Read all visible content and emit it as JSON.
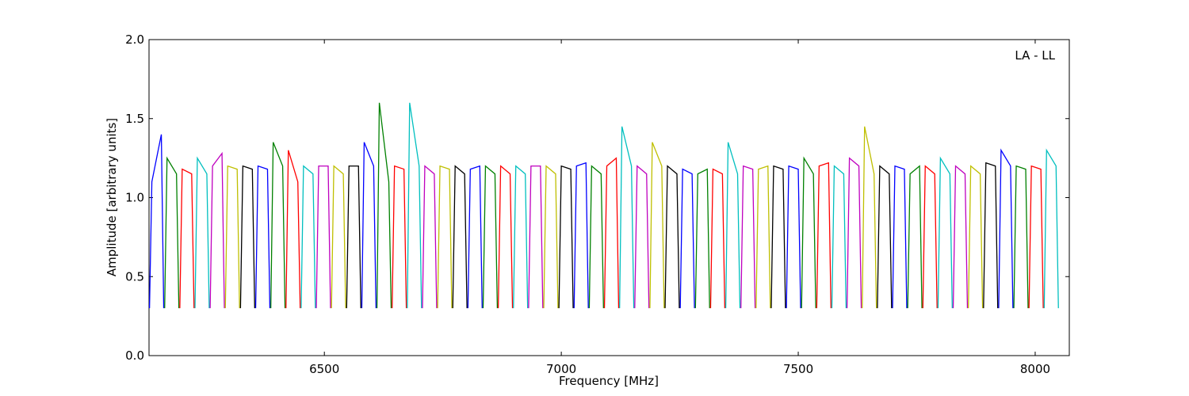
{
  "chart_data": {
    "type": "line",
    "annotation": "LA - LL",
    "xlabel": "Frequency [MHz]",
    "ylabel": "Amplitude [arbitrary units]",
    "xlim": [
      6130,
      8072
    ],
    "ylim": [
      0,
      2
    ],
    "xticks": [
      6500,
      7000,
      7500,
      8000
    ],
    "yticks": [
      {
        "value": 0,
        "label": "0.0"
      },
      0.5,
      {
        "value": 1,
        "label": "1.0"
      },
      1.5,
      {
        "value": 2,
        "label": "2.0"
      }
    ],
    "series": [
      {
        "color": "#0000ff",
        "x": [
          6131,
          6136,
          6156,
          6161,
          null,
          6355,
          6360,
          6380,
          6385,
          null,
          6579,
          6584,
          6604,
          6609,
          null,
          6803,
          6808,
          6828,
          6833,
          null,
          7027,
          7032,
          7052,
          7057,
          null,
          7251,
          7256,
          7276,
          7281,
          null,
          7475,
          7480,
          7500,
          7505,
          null,
          7699,
          7704,
          7724,
          7729,
          null,
          7923,
          7928,
          7948,
          7953
        ],
        "values": [
          0.3,
          1.1,
          1.4,
          0.3,
          null,
          0.3,
          1.2,
          1.18,
          0.3,
          null,
          0.3,
          1.35,
          1.2,
          0.3,
          null,
          0.3,
          1.18,
          1.2,
          0.3,
          null,
          0.3,
          1.2,
          1.22,
          0.3,
          null,
          0.3,
          1.18,
          1.15,
          0.3,
          null,
          0.3,
          1.2,
          1.18,
          0.3,
          null,
          0.3,
          1.2,
          1.18,
          0.3,
          null,
          0.3,
          1.3,
          1.2,
          0.3
        ]
      },
      {
        "color": "#008000",
        "x": [
          6163,
          6168,
          6188,
          6193,
          null,
          6387,
          6392,
          6412,
          6417,
          null,
          6611,
          6616,
          6636,
          6641,
          null,
          6835,
          6840,
          6860,
          6865,
          null,
          7059,
          7064,
          7084,
          7089,
          null,
          7283,
          7288,
          7308,
          7313,
          null,
          7507,
          7512,
          7532,
          7537,
          null,
          7731,
          7736,
          7756,
          7761,
          null,
          7955,
          7960,
          7980,
          7985
        ],
        "values": [
          0.3,
          1.25,
          1.15,
          0.3,
          null,
          0.3,
          1.35,
          1.2,
          0.3,
          null,
          0.3,
          1.6,
          1.1,
          0.3,
          null,
          0.3,
          1.2,
          1.15,
          0.3,
          null,
          0.3,
          1.2,
          1.15,
          0.3,
          null,
          0.3,
          1.15,
          1.18,
          0.3,
          null,
          0.3,
          1.25,
          1.15,
          0.3,
          null,
          0.3,
          1.15,
          1.2,
          0.3,
          null,
          0.3,
          1.2,
          1.18,
          0.3
        ]
      },
      {
        "color": "#ff0000",
        "x": [
          6195,
          6200,
          6220,
          6225,
          null,
          6419,
          6424,
          6444,
          6449,
          null,
          6643,
          6648,
          6668,
          6673,
          null,
          6867,
          6872,
          6892,
          6897,
          null,
          7091,
          7096,
          7116,
          7121,
          null,
          7315,
          7320,
          7340,
          7345,
          null,
          7539,
          7544,
          7564,
          7569,
          null,
          7763,
          7768,
          7788,
          7793,
          null,
          7987,
          7992,
          8012,
          8017
        ],
        "values": [
          0.3,
          1.18,
          1.15,
          0.3,
          null,
          0.3,
          1.3,
          1.1,
          0.3,
          null,
          0.3,
          1.2,
          1.18,
          0.3,
          null,
          0.3,
          1.2,
          1.15,
          0.3,
          null,
          0.3,
          1.2,
          1.25,
          0.3,
          null,
          0.3,
          1.18,
          1.15,
          0.3,
          null,
          0.3,
          1.2,
          1.22,
          0.3,
          null,
          0.3,
          1.2,
          1.15,
          0.3,
          null,
          0.3,
          1.2,
          1.18,
          0.3
        ]
      },
      {
        "color": "#00bfbf",
        "x": [
          6227,
          6232,
          6252,
          6257,
          null,
          6451,
          6456,
          6476,
          6481,
          null,
          6675,
          6680,
          6700,
          6705,
          null,
          6899,
          6904,
          6924,
          6929,
          null,
          7123,
          7128,
          7148,
          7153,
          null,
          7347,
          7352,
          7372,
          7377,
          null,
          7571,
          7576,
          7596,
          7601,
          null,
          7795,
          7800,
          7820,
          7825,
          null,
          8019,
          8024,
          8044,
          8049
        ],
        "values": [
          0.3,
          1.25,
          1.15,
          0.3,
          null,
          0.3,
          1.2,
          1.15,
          0.3,
          null,
          0.3,
          1.6,
          1.2,
          0.3,
          null,
          0.3,
          1.2,
          1.15,
          0.3,
          null,
          0.3,
          1.45,
          1.2,
          0.3,
          null,
          0.3,
          1.35,
          1.15,
          0.3,
          null,
          0.3,
          1.2,
          1.15,
          0.3,
          null,
          0.3,
          1.25,
          1.15,
          0.3,
          null,
          0.3,
          1.3,
          1.2,
          0.3
        ]
      },
      {
        "color": "#bf00bf",
        "x": [
          6259,
          6264,
          6284,
          6289,
          null,
          6483,
          6488,
          6508,
          6513,
          null,
          6707,
          6712,
          6732,
          6737,
          null,
          6931,
          6936,
          6956,
          6961,
          null,
          7155,
          7160,
          7180,
          7185,
          null,
          7379,
          7384,
          7404,
          7409,
          null,
          7603,
          7608,
          7628,
          7633,
          null,
          7827,
          7832,
          7852,
          7857
        ],
        "values": [
          0.3,
          1.2,
          1.28,
          0.3,
          null,
          0.3,
          1.2,
          1.2,
          0.3,
          null,
          0.3,
          1.2,
          1.15,
          0.3,
          null,
          0.3,
          1.2,
          1.2,
          0.3,
          null,
          0.3,
          1.2,
          1.15,
          0.3,
          null,
          0.3,
          1.2,
          1.18,
          0.3,
          null,
          0.3,
          1.25,
          1.2,
          0.3,
          null,
          0.3,
          1.2,
          1.15,
          0.3
        ]
      },
      {
        "color": "#bfbf00",
        "x": [
          6291,
          6296,
          6316,
          6321,
          null,
          6515,
          6520,
          6540,
          6545,
          null,
          6739,
          6744,
          6764,
          6769,
          null,
          6963,
          6968,
          6988,
          6993,
          null,
          7187,
          7192,
          7212,
          7217,
          null,
          7411,
          7416,
          7436,
          7441,
          null,
          7635,
          7640,
          7660,
          7665,
          null,
          7859,
          7864,
          7884,
          7889
        ],
        "values": [
          0.3,
          1.2,
          1.18,
          0.3,
          null,
          0.3,
          1.2,
          1.15,
          0.3,
          null,
          0.3,
          1.2,
          1.18,
          0.3,
          null,
          0.3,
          1.2,
          1.15,
          0.3,
          null,
          0.3,
          1.35,
          1.2,
          0.3,
          null,
          0.3,
          1.18,
          1.2,
          0.3,
          null,
          0.3,
          1.45,
          1.15,
          0.3,
          null,
          0.3,
          1.2,
          1.15,
          0.3
        ]
      },
      {
        "color": "#000000",
        "x": [
          6323,
          6328,
          6348,
          6353,
          null,
          6547,
          6552,
          6572,
          6577,
          null,
          6771,
          6776,
          6796,
          6801,
          null,
          6995,
          7000,
          7020,
          7025,
          null,
          7219,
          7224,
          7244,
          7249,
          null,
          7443,
          7448,
          7468,
          7473,
          null,
          7667,
          7672,
          7692,
          7697,
          null,
          7891,
          7896,
          7916,
          7921
        ],
        "values": [
          0.3,
          1.2,
          1.18,
          0.3,
          null,
          0.3,
          1.2,
          1.2,
          0.3,
          null,
          0.3,
          1.2,
          1.15,
          0.3,
          null,
          0.3,
          1.2,
          1.18,
          0.3,
          null,
          0.3,
          1.2,
          1.15,
          0.3,
          null,
          0.3,
          1.2,
          1.18,
          0.3,
          null,
          0.3,
          1.2,
          1.15,
          0.3,
          null,
          0.3,
          1.22,
          1.2,
          0.3
        ]
      }
    ]
  }
}
